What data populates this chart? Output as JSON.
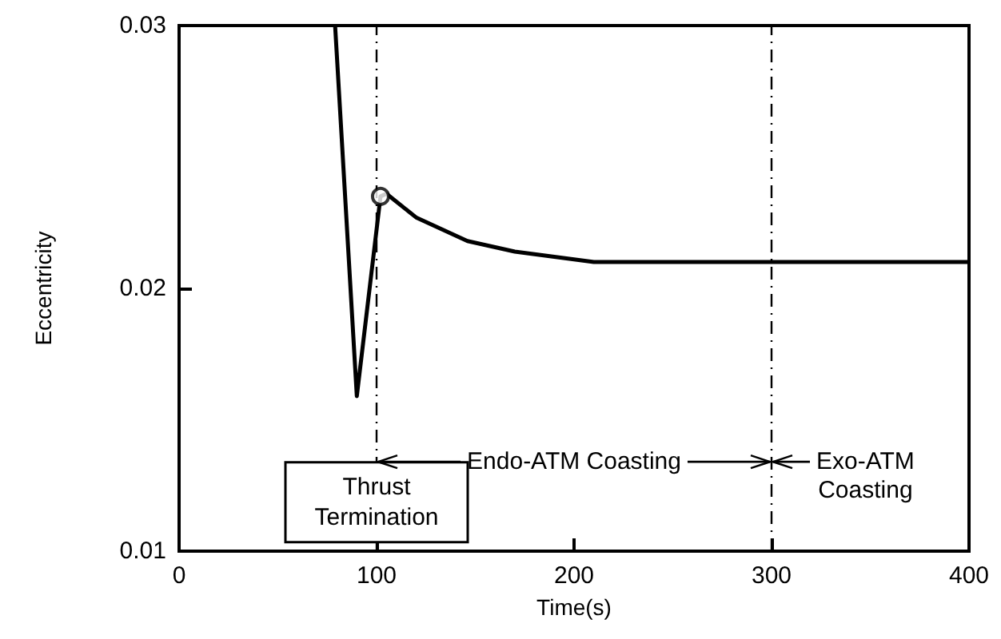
{
  "chart_data": {
    "type": "line",
    "xlabel": "Time(s)",
    "ylabel": "Eccentricity",
    "x": [
      79,
      90,
      102,
      105,
      120,
      146,
      170,
      190,
      210,
      300,
      400
    ],
    "series": [
      {
        "color": "#000000",
        "values": [
          0.03,
          0.0159,
          0.0235,
          0.0236,
          0.0227,
          0.0218,
          0.0214,
          0.0212,
          0.021,
          0.021,
          0.021
        ]
      },
      {
        "type": "scatter",
        "color": "#000000",
        "marker": "circle",
        "values": [
          null,
          null,
          0.0235,
          null,
          null,
          null,
          null,
          null,
          null,
          null,
          null
        ]
      }
    ],
    "xlim": [
      0,
      400
    ],
    "xticks": [
      0,
      100,
      200,
      300,
      400
    ],
    "ylim": [
      0.01,
      0.03
    ],
    "yticks": [
      0.01,
      0.02,
      0.03
    ],
    "grid": false,
    "marker": "none",
    "line_style": "solid",
    "ref_lines": [
      {
        "axis": "x",
        "value": 100,
        "line_style": "dashed"
      },
      {
        "axis": "x",
        "value": 300,
        "line_style": "dashed"
      }
    ],
    "annotations": [
      "Thrust\nTermination",
      {
        "text": "Endo-ATM Coasting",
        "x": 300,
        "y": 0.0134
      },
      "Exo-ATM\nCoasting"
    ]
  }
}
